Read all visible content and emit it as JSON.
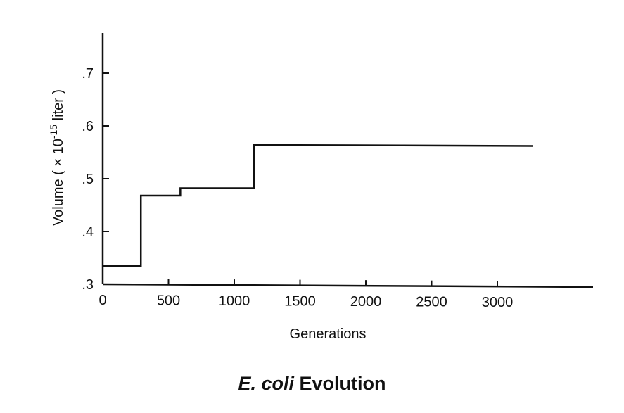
{
  "chart_data": {
    "type": "line",
    "subtype": "step",
    "title": {
      "italic_part": "E. coli",
      "rest": "Evolution"
    },
    "xlabel": "Generations",
    "ylabel": {
      "prefix": "Volume ( × 10",
      "exponent": "-15",
      "suffix": " liter )"
    },
    "xlim": [
      0,
      3800
    ],
    "ylim": [
      0.3,
      0.78
    ],
    "x_ticks": [
      {
        "value": 0,
        "label": "0"
      },
      {
        "value": 500,
        "label": "500"
      },
      {
        "value": 1000,
        "label": "1000"
      },
      {
        "value": 1500,
        "label": "1500"
      },
      {
        "value": 2000,
        "label": "2000"
      },
      {
        "value": 2500,
        "label": "2500"
      },
      {
        "value": 3000,
        "label": "3000"
      }
    ],
    "y_ticks": [
      {
        "value": 0.3,
        "label": ".3"
      },
      {
        "value": 0.4,
        "label": ".4"
      },
      {
        "value": 0.5,
        "label": ".5"
      },
      {
        "value": 0.6,
        "label": ".6"
      },
      {
        "value": 0.7,
        "label": ".7"
      }
    ],
    "grid": false,
    "legend": "none",
    "series": [
      {
        "points": [
          {
            "x": 0,
            "y": 0.335
          },
          {
            "x": 290,
            "y": 0.335
          },
          {
            "x": 290,
            "y": 0.468
          },
          {
            "x": 590,
            "y": 0.468
          },
          {
            "x": 590,
            "y": 0.482
          },
          {
            "x": 1150,
            "y": 0.482
          },
          {
            "x": 1150,
            "y": 0.564
          },
          {
            "x": 3270,
            "y": 0.562
          }
        ]
      }
    ]
  }
}
